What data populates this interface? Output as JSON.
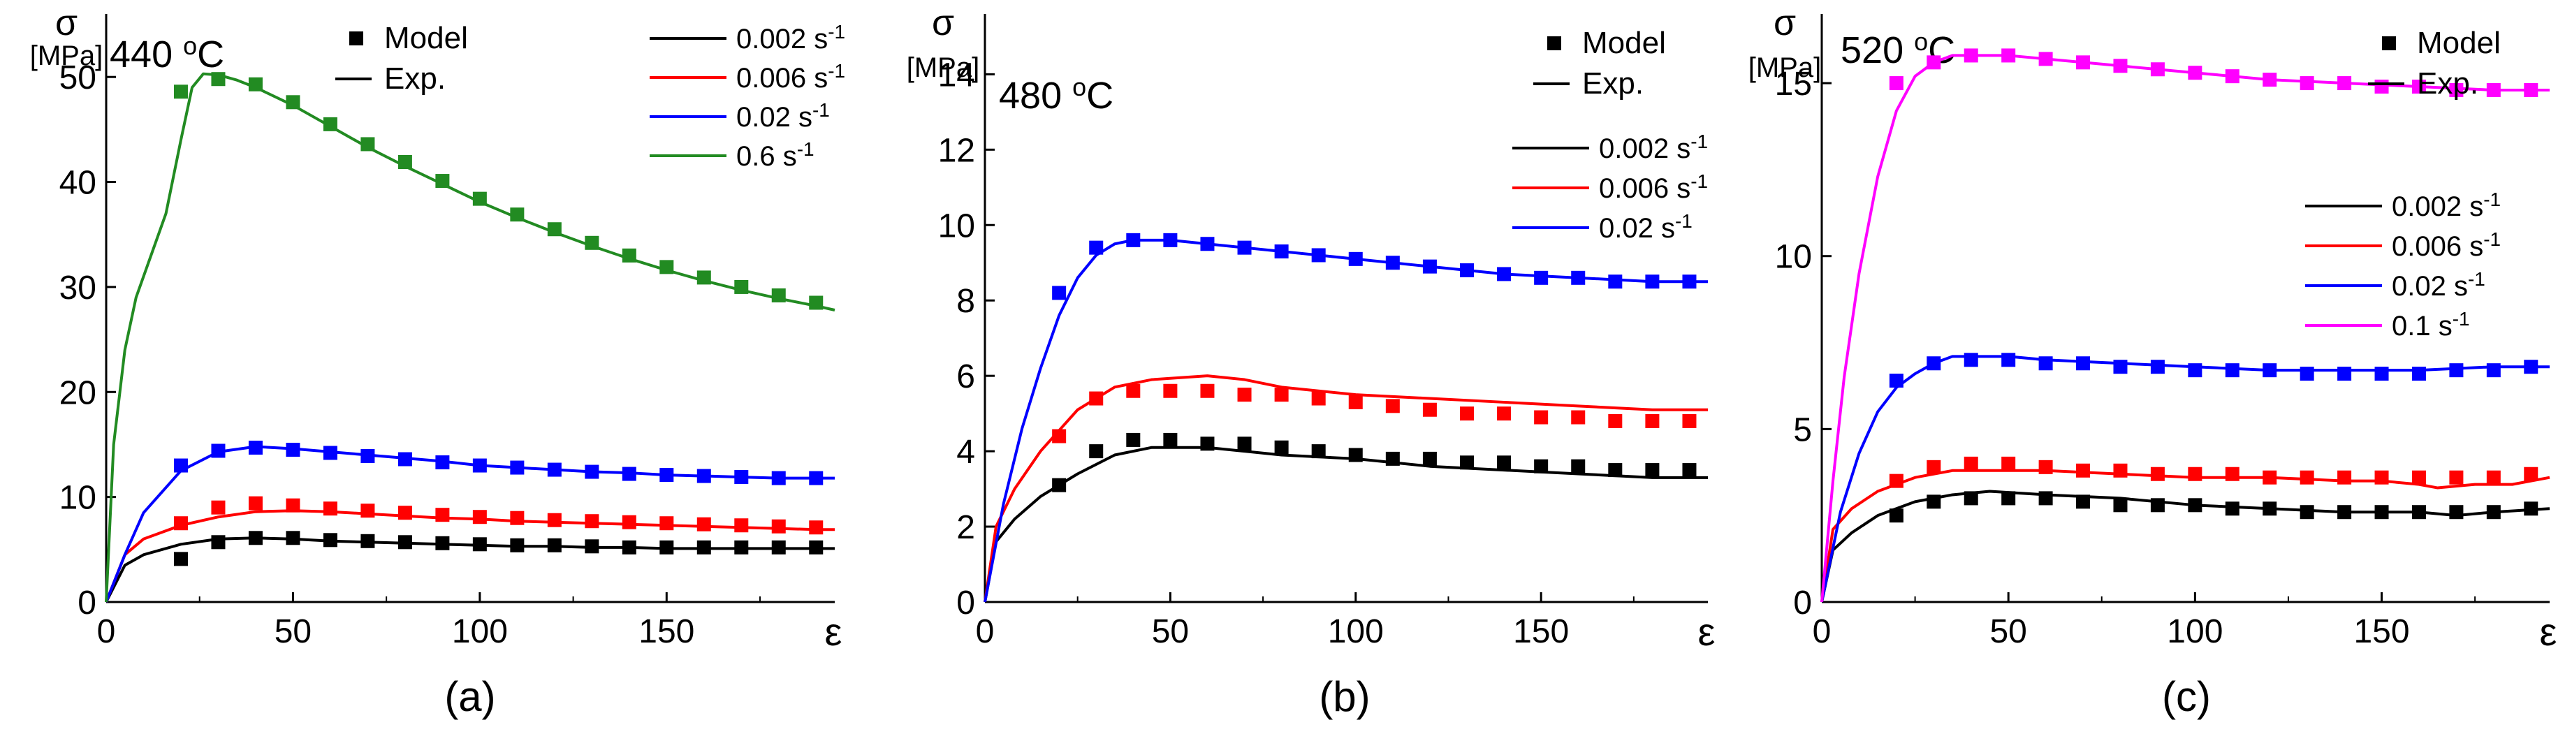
{
  "chart_data": [
    {
      "type": "line",
      "panel_label": "(a)",
      "temperature": "440",
      "temp_unit": "oC",
      "ylabel_symbol": "σ",
      "ylabel_unit": "[MPa]",
      "xlabel": "ε",
      "xlim": [
        0,
        195
      ],
      "ylim": [
        0,
        56
      ],
      "xticks": [
        0,
        50,
        100,
        150
      ],
      "yticks": [
        0,
        10,
        20,
        30,
        40,
        50
      ],
      "legend_markers": {
        "model": "Model",
        "exp": "Exp."
      },
      "series": [
        {
          "name": "0.002 s-1",
          "rate": "0.002",
          "color": "#000000",
          "exp_x": [
            0,
            5,
            10,
            20,
            30,
            40,
            50,
            60,
            70,
            80,
            90,
            100,
            110,
            120,
            130,
            140,
            150,
            160,
            170,
            180,
            190,
            195
          ],
          "exp_y": [
            0,
            3.5,
            4.5,
            5.5,
            6.0,
            6.1,
            6.0,
            5.8,
            5.7,
            5.6,
            5.5,
            5.4,
            5.3,
            5.3,
            5.2,
            5.2,
            5.1,
            5.1,
            5.1,
            5.1,
            5.1,
            5.1
          ],
          "model_x": [
            20,
            30,
            40,
            50,
            60,
            70,
            80,
            90,
            100,
            110,
            120,
            130,
            140,
            150,
            160,
            170,
            180,
            190
          ],
          "model_y": [
            4.1,
            5.7,
            6.1,
            6.1,
            5.9,
            5.8,
            5.7,
            5.6,
            5.5,
            5.4,
            5.4,
            5.3,
            5.2,
            5.2,
            5.2,
            5.2,
            5.2,
            5.2
          ]
        },
        {
          "name": "0.006 s-1",
          "rate": "0.006",
          "color": "#ff0000",
          "exp_x": [
            0,
            5,
            10,
            20,
            30,
            40,
            50,
            60,
            70,
            80,
            90,
            100,
            110,
            120,
            130,
            140,
            150,
            160,
            170,
            180,
            190,
            195
          ],
          "exp_y": [
            0,
            4.5,
            6.0,
            7.3,
            8.1,
            8.6,
            8.7,
            8.6,
            8.4,
            8.2,
            8.0,
            7.9,
            7.7,
            7.6,
            7.5,
            7.4,
            7.3,
            7.2,
            7.1,
            7.0,
            6.9,
            6.9
          ],
          "model_x": [
            20,
            30,
            40,
            50,
            60,
            70,
            80,
            90,
            100,
            110,
            120,
            130,
            140,
            150,
            160,
            170,
            180,
            190
          ],
          "model_y": [
            7.5,
            9.0,
            9.4,
            9.2,
            8.9,
            8.7,
            8.5,
            8.3,
            8.1,
            8.0,
            7.8,
            7.7,
            7.6,
            7.5,
            7.4,
            7.3,
            7.2,
            7.1
          ]
        },
        {
          "name": "0.02 s-1",
          "rate": "0.02",
          "color": "#0000ff",
          "exp_x": [
            0,
            5,
            10,
            20,
            30,
            40,
            50,
            60,
            70,
            80,
            90,
            100,
            110,
            120,
            130,
            140,
            150,
            160,
            170,
            180,
            190,
            195
          ],
          "exp_y": [
            0,
            4.5,
            8.5,
            12.5,
            14.3,
            14.8,
            14.6,
            14.3,
            14.0,
            13.7,
            13.4,
            13.0,
            12.8,
            12.6,
            12.4,
            12.3,
            12.1,
            12.0,
            11.9,
            11.8,
            11.8,
            11.8
          ],
          "model_x": [
            20,
            30,
            40,
            50,
            60,
            70,
            80,
            90,
            100,
            110,
            120,
            130,
            140,
            150,
            160,
            170,
            180,
            190
          ],
          "model_y": [
            13.0,
            14.4,
            14.7,
            14.5,
            14.2,
            13.9,
            13.6,
            13.3,
            13.0,
            12.8,
            12.6,
            12.4,
            12.2,
            12.1,
            12.0,
            11.9,
            11.8,
            11.8
          ]
        },
        {
          "name": "0.6 s-1",
          "rate": "0.6",
          "color": "#228b22",
          "exp_x": [
            0,
            2,
            5,
            8,
            12,
            16,
            20,
            23,
            26,
            30,
            35,
            40,
            50,
            60,
            70,
            80,
            90,
            100,
            110,
            120,
            130,
            140,
            150,
            160,
            170,
            180,
            190,
            195
          ],
          "exp_y": [
            0,
            15,
            24,
            29,
            33,
            37,
            44,
            49,
            50.3,
            50.2,
            49.7,
            49.0,
            47.3,
            45.3,
            43.3,
            41.5,
            39.8,
            38.1,
            36.6,
            35.2,
            33.9,
            32.7,
            31.6,
            30.6,
            29.7,
            28.9,
            28.2,
            27.8
          ],
          "model_x": [
            20,
            30,
            40,
            50,
            60,
            70,
            80,
            90,
            100,
            110,
            120,
            130,
            140,
            150,
            160,
            170,
            180,
            190
          ],
          "model_y": [
            48.6,
            49.8,
            49.3,
            47.6,
            45.5,
            43.6,
            41.9,
            40.1,
            38.4,
            36.9,
            35.5,
            34.2,
            33.0,
            31.9,
            30.9,
            30.0,
            29.2,
            28.5
          ]
        }
      ]
    },
    {
      "type": "line",
      "panel_label": "(b)",
      "temperature": "480",
      "temp_unit": "oC",
      "ylabel_symbol": "σ",
      "ylabel_unit": "[MPa]",
      "xlabel": "ε",
      "xlim": [
        0,
        195
      ],
      "ylim": [
        0,
        15.6
      ],
      "xticks": [
        0,
        50,
        100,
        150
      ],
      "yticks": [
        0,
        2,
        4,
        6,
        8,
        10,
        12,
        14
      ],
      "legend_markers": {
        "model": "Model",
        "exp": "Exp."
      },
      "series": [
        {
          "name": "0.002 s-1",
          "rate": "0.002",
          "color": "#000000",
          "exp_x": [
            0,
            3,
            8,
            15,
            25,
            35,
            45,
            60,
            80,
            100,
            120,
            140,
            160,
            180,
            195
          ],
          "exp_y": [
            0,
            1.6,
            2.2,
            2.8,
            3.4,
            3.9,
            4.1,
            4.1,
            3.9,
            3.8,
            3.6,
            3.5,
            3.4,
            3.3,
            3.3
          ],
          "model_x": [
            20,
            30,
            40,
            50,
            60,
            70,
            80,
            90,
            100,
            110,
            120,
            130,
            140,
            150,
            160,
            170,
            180,
            190
          ],
          "model_y": [
            3.1,
            4.0,
            4.3,
            4.3,
            4.2,
            4.2,
            4.1,
            4.0,
            3.9,
            3.8,
            3.8,
            3.7,
            3.7,
            3.6,
            3.6,
            3.5,
            3.5,
            3.5
          ]
        },
        {
          "name": "0.006 s-1",
          "rate": "0.006",
          "color": "#ff0000",
          "exp_x": [
            0,
            3,
            8,
            15,
            25,
            35,
            45,
            60,
            70,
            80,
            100,
            120,
            140,
            160,
            180,
            195
          ],
          "exp_y": [
            0,
            2.0,
            3.0,
            4.0,
            5.1,
            5.7,
            5.9,
            6.0,
            5.9,
            5.7,
            5.5,
            5.4,
            5.3,
            5.2,
            5.1,
            5.1
          ],
          "model_x": [
            20,
            30,
            40,
            50,
            60,
            70,
            80,
            90,
            100,
            110,
            120,
            130,
            140,
            150,
            160,
            170,
            180,
            190
          ],
          "model_y": [
            4.4,
            5.4,
            5.6,
            5.6,
            5.6,
            5.5,
            5.5,
            5.4,
            5.3,
            5.2,
            5.1,
            5.0,
            5.0,
            4.9,
            4.9,
            4.8,
            4.8,
            4.8
          ]
        },
        {
          "name": "0.02 s-1",
          "rate": "0.02",
          "color": "#0000ff",
          "exp_x": [
            0,
            5,
            10,
            15,
            20,
            25,
            30,
            35,
            40,
            50,
            60,
            80,
            100,
            120,
            140,
            160,
            180,
            195
          ],
          "exp_y": [
            0,
            2.6,
            4.6,
            6.2,
            7.6,
            8.6,
            9.2,
            9.5,
            9.6,
            9.6,
            9.5,
            9.3,
            9.1,
            8.9,
            8.7,
            8.6,
            8.5,
            8.5
          ],
          "model_x": [
            20,
            30,
            40,
            50,
            60,
            70,
            80,
            90,
            100,
            110,
            120,
            130,
            140,
            150,
            160,
            170,
            180,
            190
          ],
          "model_y": [
            8.2,
            9.4,
            9.6,
            9.6,
            9.5,
            9.4,
            9.3,
            9.2,
            9.1,
            9.0,
            8.9,
            8.8,
            8.7,
            8.6,
            8.6,
            8.5,
            8.5,
            8.5
          ]
        }
      ]
    },
    {
      "type": "line",
      "panel_label": "(c)",
      "temperature": "520",
      "temp_unit": "oC",
      "ylabel_symbol": "σ",
      "ylabel_unit": "[MPa]",
      "xlabel": "ε",
      "xlim": [
        0,
        195
      ],
      "ylim": [
        0,
        17
      ],
      "xticks": [
        0,
        50,
        100,
        150
      ],
      "yticks": [
        0,
        5,
        10,
        15
      ],
      "legend_markers": {
        "model": "Model",
        "exp": "Exp."
      },
      "series": [
        {
          "name": "0.002 s-1",
          "rate": "0.002",
          "color": "#000000",
          "exp_x": [
            0,
            3,
            8,
            15,
            25,
            35,
            45,
            60,
            80,
            100,
            120,
            140,
            160,
            170,
            180,
            195
          ],
          "exp_y": [
            0,
            1.5,
            2.0,
            2.5,
            2.9,
            3.1,
            3.2,
            3.1,
            3.0,
            2.8,
            2.7,
            2.6,
            2.6,
            2.5,
            2.6,
            2.7
          ],
          "model_x": [
            20,
            30,
            40,
            50,
            60,
            70,
            80,
            90,
            100,
            110,
            120,
            130,
            140,
            150,
            160,
            170,
            180,
            190
          ],
          "model_y": [
            2.5,
            2.9,
            3.0,
            3.0,
            3.0,
            2.9,
            2.8,
            2.8,
            2.8,
            2.7,
            2.7,
            2.6,
            2.6,
            2.6,
            2.6,
            2.6,
            2.6,
            2.7
          ]
        },
        {
          "name": "0.006 s-1",
          "rate": "0.006",
          "color": "#ff0000",
          "exp_x": [
            0,
            3,
            8,
            15,
            25,
            35,
            45,
            60,
            80,
            100,
            120,
            140,
            150,
            160,
            165,
            175,
            185,
            195
          ],
          "exp_y": [
            0,
            2.1,
            2.7,
            3.2,
            3.6,
            3.8,
            3.8,
            3.8,
            3.7,
            3.6,
            3.6,
            3.5,
            3.5,
            3.4,
            3.3,
            3.4,
            3.4,
            3.6
          ],
          "model_x": [
            20,
            30,
            40,
            50,
            60,
            70,
            80,
            90,
            100,
            110,
            120,
            130,
            140,
            150,
            160,
            170,
            180,
            190
          ],
          "model_y": [
            3.5,
            3.9,
            4.0,
            4.0,
            3.9,
            3.8,
            3.8,
            3.7,
            3.7,
            3.7,
            3.6,
            3.6,
            3.6,
            3.6,
            3.6,
            3.6,
            3.6,
            3.7
          ]
        },
        {
          "name": "0.02 s-1",
          "rate": "0.02",
          "color": "#0000ff",
          "exp_x": [
            0,
            5,
            10,
            15,
            20,
            25,
            30,
            35,
            40,
            50,
            60,
            80,
            100,
            120,
            140,
            160,
            180,
            195
          ],
          "exp_y": [
            0,
            2.6,
            4.3,
            5.5,
            6.2,
            6.6,
            6.9,
            7.1,
            7.1,
            7.1,
            7.0,
            6.9,
            6.8,
            6.7,
            6.7,
            6.7,
            6.8,
            6.8
          ],
          "model_x": [
            20,
            30,
            40,
            50,
            60,
            70,
            80,
            90,
            100,
            110,
            120,
            130,
            140,
            150,
            160,
            170,
            180,
            190
          ],
          "model_y": [
            6.4,
            6.9,
            7.0,
            7.0,
            6.9,
            6.9,
            6.8,
            6.8,
            6.7,
            6.7,
            6.7,
            6.6,
            6.6,
            6.6,
            6.6,
            6.7,
            6.7,
            6.8
          ]
        },
        {
          "name": "0.1 s-1",
          "rate": "0.1",
          "color": "#ff00ff",
          "exp_x": [
            0,
            3,
            6,
            10,
            15,
            20,
            25,
            30,
            35,
            40,
            50,
            60,
            80,
            100,
            120,
            140,
            160,
            180,
            195
          ],
          "exp_y": [
            0,
            3.5,
            6.5,
            9.5,
            12.3,
            14.2,
            15.2,
            15.6,
            15.8,
            15.8,
            15.8,
            15.7,
            15.5,
            15.3,
            15.1,
            15.0,
            14.9,
            14.8,
            14.8
          ],
          "model_x": [
            20,
            30,
            40,
            50,
            60,
            70,
            80,
            90,
            100,
            110,
            120,
            130,
            140,
            150,
            160,
            170,
            180,
            190
          ],
          "model_y": [
            15.0,
            15.6,
            15.8,
            15.8,
            15.7,
            15.6,
            15.5,
            15.4,
            15.3,
            15.2,
            15.1,
            15.0,
            15.0,
            14.9,
            14.9,
            14.8,
            14.8,
            14.8
          ]
        }
      ]
    }
  ]
}
